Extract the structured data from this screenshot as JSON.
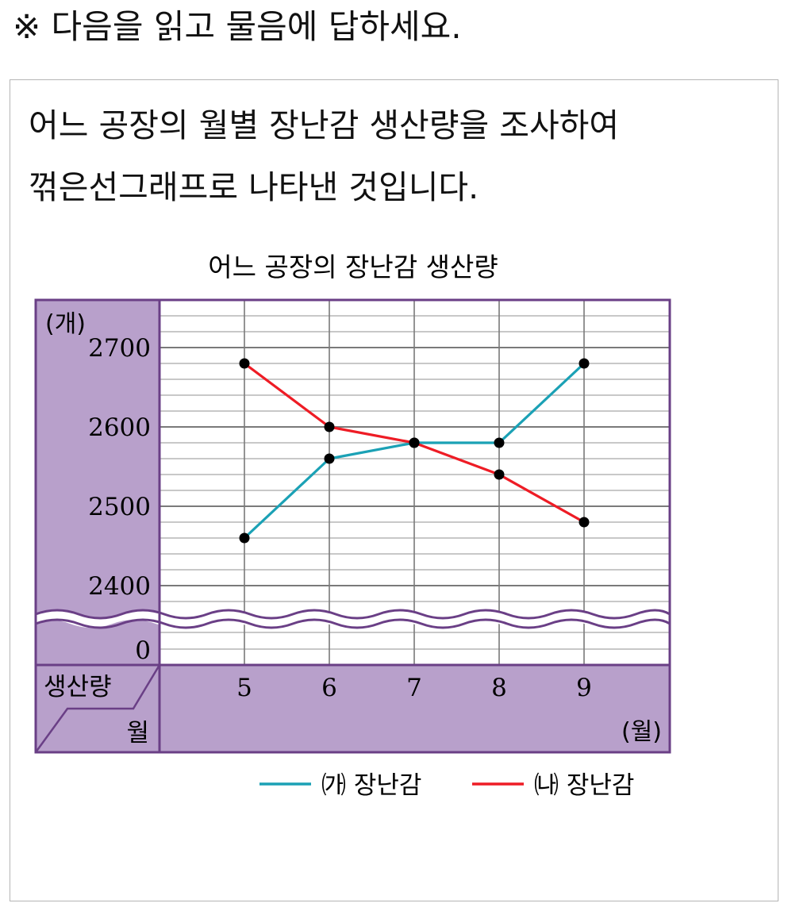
{
  "instruction": "※ 다음을 읽고 물음에 답하세요.",
  "prompt": {
    "line1": "어느 공장의 월별 장난감 생산량을 조사하여",
    "line2": "꺾은선그래프로 나타낸 것입니다."
  },
  "colors": {
    "frame": "#6a3f86",
    "panel": "#b8a0cb",
    "grid": "#7a7a7a",
    "gridMinor": "#a8a8a8",
    "series_ga": "#1ba1b5",
    "series_na": "#ee1c25",
    "point": "#000000"
  },
  "chart_data": {
    "type": "line",
    "title": "어느 공장의 장난감 생산량",
    "ylabel": "(개)",
    "xlabel": "(월)",
    "corner_top": "생산량",
    "corner_bottom": "월",
    "x": [
      5,
      6,
      7,
      8,
      9
    ],
    "x_tick_labels": [
      "5",
      "6",
      "7",
      "8",
      "9"
    ],
    "ylim": [
      2380,
      2760
    ],
    "y_ticks": [
      2400,
      2500,
      2600,
      2700
    ],
    "y_tick_labels": [
      "2400",
      "2500",
      "2600",
      "2700"
    ],
    "y_zero_label": "0",
    "axis_break": true,
    "minor_step": 20,
    "series": [
      {
        "name": "㈎ 장난감",
        "values": [
          2460,
          2560,
          2580,
          2580,
          2680
        ]
      },
      {
        "name": "㈏ 장난감",
        "values": [
          2680,
          2600,
          2580,
          2540,
          2480
        ]
      }
    ],
    "legend": "bottom"
  }
}
